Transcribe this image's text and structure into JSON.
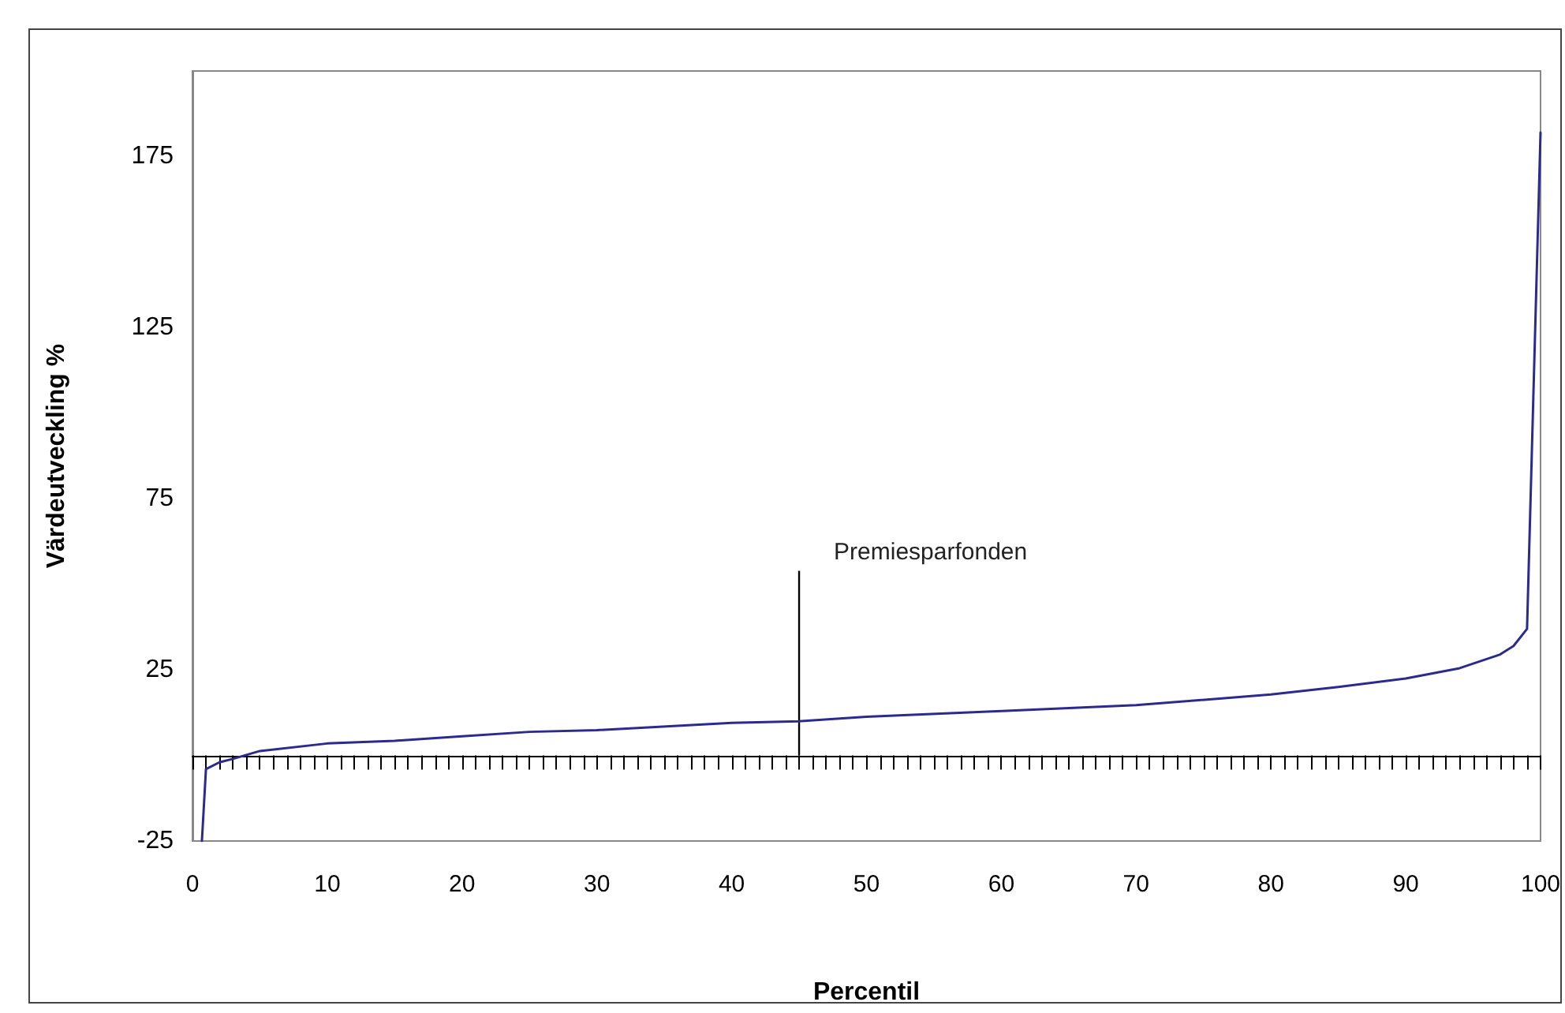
{
  "chart_data": {
    "type": "line",
    "xlabel": "Percentil",
    "ylabel": "Värdeutveckling %",
    "x": [
      0.7,
      1,
      2,
      3,
      5,
      10,
      15,
      20,
      25,
      30,
      40,
      45,
      50,
      60,
      70,
      80,
      85,
      90,
      94,
      97,
      98,
      99,
      100
    ],
    "series": [
      {
        "color": "#2b2b8f",
        "values": [
          -25,
          -4,
          -2,
          -1,
          1.3,
          3.5,
          4.3,
          5.6,
          6.9,
          7.4,
          9.5,
          10,
          11.3,
          13,
          14.7,
          17.8,
          20,
          22.5,
          25.5,
          29.5,
          32,
          37,
          182
        ]
      }
    ],
    "xlim": [
      0,
      100
    ],
    "ylim": [
      -25,
      200
    ],
    "yticks": [
      -25,
      25,
      75,
      125,
      175
    ],
    "xticks": [
      0,
      {
        "value": 1,
        "label": null
      },
      {
        "value": 2,
        "label": null
      },
      {
        "value": 3,
        "label": null
      },
      {
        "value": 4,
        "label": null
      },
      {
        "value": 5,
        "label": null
      },
      {
        "value": 6,
        "label": null
      },
      {
        "value": 7,
        "label": null
      },
      {
        "value": 8,
        "label": null
      },
      {
        "value": 9,
        "label": null
      },
      10,
      {
        "value": 11,
        "label": null
      },
      {
        "value": 12,
        "label": null
      },
      {
        "value": 13,
        "label": null
      },
      {
        "value": 14,
        "label": null
      },
      {
        "value": 15,
        "label": null
      },
      {
        "value": 16,
        "label": null
      },
      {
        "value": 17,
        "label": null
      },
      {
        "value": 18,
        "label": null
      },
      {
        "value": 19,
        "label": null
      },
      20,
      {
        "value": 21,
        "label": null
      },
      {
        "value": 22,
        "label": null
      },
      {
        "value": 23,
        "label": null
      },
      {
        "value": 24,
        "label": null
      },
      {
        "value": 25,
        "label": null
      },
      {
        "value": 26,
        "label": null
      },
      {
        "value": 27,
        "label": null
      },
      {
        "value": 28,
        "label": null
      },
      {
        "value": 29,
        "label": null
      },
      30,
      {
        "value": 31,
        "label": null
      },
      {
        "value": 32,
        "label": null
      },
      {
        "value": 33,
        "label": null
      },
      {
        "value": 34,
        "label": null
      },
      {
        "value": 35,
        "label": null
      },
      {
        "value": 36,
        "label": null
      },
      {
        "value": 37,
        "label": null
      },
      {
        "value": 38,
        "label": null
      },
      {
        "value": 39,
        "label": null
      },
      40,
      {
        "value": 41,
        "label": null
      },
      {
        "value": 42,
        "label": null
      },
      {
        "value": 43,
        "label": null
      },
      {
        "value": 44,
        "label": null
      },
      {
        "value": 45,
        "label": null
      },
      {
        "value": 46,
        "label": null
      },
      {
        "value": 47,
        "label": null
      },
      {
        "value": 48,
        "label": null
      },
      {
        "value": 49,
        "label": null
      },
      50,
      {
        "value": 51,
        "label": null
      },
      {
        "value": 52,
        "label": null
      },
      {
        "value": 53,
        "label": null
      },
      {
        "value": 54,
        "label": null
      },
      {
        "value": 55,
        "label": null
      },
      {
        "value": 56,
        "label": null
      },
      {
        "value": 57,
        "label": null
      },
      {
        "value": 58,
        "label": null
      },
      {
        "value": 59,
        "label": null
      },
      60,
      {
        "value": 61,
        "label": null
      },
      {
        "value": 62,
        "label": null
      },
      {
        "value": 63,
        "label": null
      },
      {
        "value": 64,
        "label": null
      },
      {
        "value": 65,
        "label": null
      },
      {
        "value": 66,
        "label": null
      },
      {
        "value": 67,
        "label": null
      },
      {
        "value": 68,
        "label": null
      },
      {
        "value": 69,
        "label": null
      },
      70,
      {
        "value": 71,
        "label": null
      },
      {
        "value": 72,
        "label": null
      },
      {
        "value": 73,
        "label": null
      },
      {
        "value": 74,
        "label": null
      },
      {
        "value": 75,
        "label": null
      },
      {
        "value": 76,
        "label": null
      },
      {
        "value": 77,
        "label": null
      },
      {
        "value": 78,
        "label": null
      },
      {
        "value": 79,
        "label": null
      },
      80,
      {
        "value": 81,
        "label": null
      },
      {
        "value": 82,
        "label": null
      },
      {
        "value": 83,
        "label": null
      },
      {
        "value": 84,
        "label": null
      },
      {
        "value": 85,
        "label": null
      },
      {
        "value": 86,
        "label": null
      },
      {
        "value": 87,
        "label": null
      },
      {
        "value": 88,
        "label": null
      },
      {
        "value": 89,
        "label": null
      },
      90,
      {
        "value": 91,
        "label": null
      },
      {
        "value": 92,
        "label": null
      },
      {
        "value": 93,
        "label": null
      },
      {
        "value": 94,
        "label": null
      },
      {
        "value": 95,
        "label": null
      },
      {
        "value": 96,
        "label": null
      },
      {
        "value": 97,
        "label": null
      },
      {
        "value": 98,
        "label": null
      },
      {
        "value": 99,
        "label": null
      },
      100
    ],
    "ref_lines": [
      {
        "axis": "x",
        "value": 45,
        "label": "Premiesparfonden",
        "color": "#000000"
      }
    ],
    "marker": "none",
    "line_style": "solid",
    "grid": false
  }
}
